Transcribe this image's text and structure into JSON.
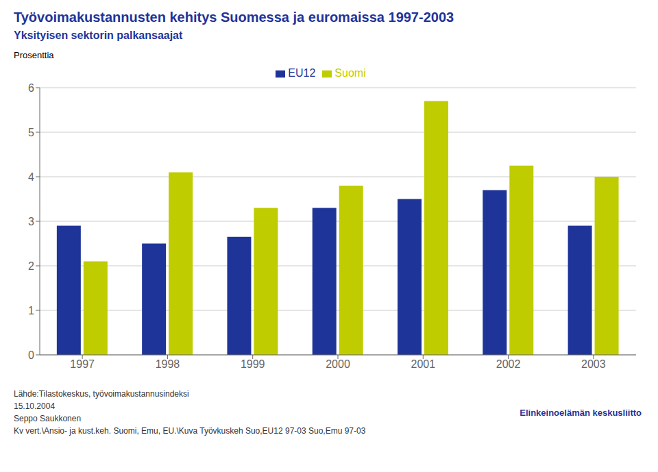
{
  "chart_data": {
    "type": "bar",
    "title": "Työvoimakustannusten kehitys Suomessa ja euromaissa 1997-2003",
    "subtitle": "Yksityisen sektorin palkansaajat",
    "y_label": "Prosenttia",
    "categories": [
      "1997",
      "1998",
      "1999",
      "2000",
      "2001",
      "2002",
      "2003"
    ],
    "series": [
      {
        "name": "EU12",
        "color": "#1F3499",
        "values": [
          2.9,
          2.5,
          2.65,
          3.3,
          3.5,
          3.7,
          2.9
        ]
      },
      {
        "name": "Suomi",
        "color": "#BFCC00",
        "values": [
          2.1,
          4.1,
          3.3,
          3.8,
          5.7,
          4.25,
          4.0
        ]
      }
    ],
    "ylim": [
      0,
      6
    ],
    "yticks": [
      0,
      1,
      2,
      3,
      4,
      5,
      6
    ],
    "grid": true,
    "legend": "top",
    "annotations": [
      "Lähde:Tilastokeskus, työvoimakustannusindeksi",
      "15.10.2004",
      "Seppo Saukkonen",
      "Kv vert.\\Ansio- ja kust.keh. Suomi, Emu, EU.\\Kuva Työvkuskeh Suo,EU12 97-03 Suo,Emu 97-03",
      "Elinkeinoelämän keskusliitto"
    ]
  }
}
